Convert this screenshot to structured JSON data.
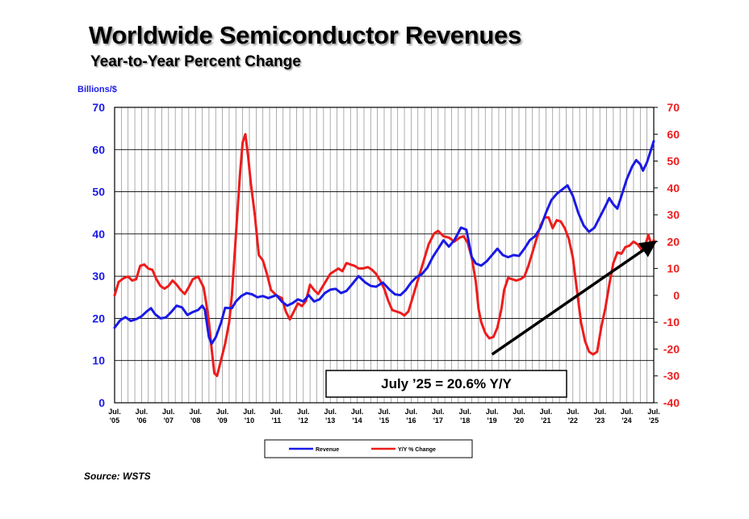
{
  "header": {
    "title": "Worldwide Semiconductor Revenues",
    "subtitle": "Year-to-Year Percent Change"
  },
  "footer": {
    "source": "Source: WSTS"
  },
  "chart_data": {
    "type": "line",
    "title": "Worldwide Semiconductor Revenues",
    "subtitle": "Year-to-Year Percent Change",
    "left_axis": {
      "label": "Billions/$",
      "ylim": [
        0,
        70
      ],
      "ticks": [
        0,
        10,
        20,
        30,
        40,
        50,
        60,
        70
      ],
      "color": "#1a1ae6"
    },
    "right_axis": {
      "label": "",
      "ylim": [
        -40,
        70
      ],
      "ticks": [
        -40,
        -30,
        -20,
        -10,
        0,
        10,
        20,
        30,
        40,
        50,
        60,
        70
      ],
      "color": "#ee1c1c"
    },
    "x_range": [
      2005.5,
      2025.5
    ],
    "x_ticks": [
      {
        "x": 2005.5,
        "line1": "Jul.",
        "line2": "'05"
      },
      {
        "x": 2006.5,
        "line1": "Jul.",
        "line2": "'06"
      },
      {
        "x": 2007.5,
        "line1": "Jul.",
        "line2": "'07"
      },
      {
        "x": 2008.5,
        "line1": "Jul.",
        "line2": "'08"
      },
      {
        "x": 2009.5,
        "line1": "Jul.",
        "line2": "'09"
      },
      {
        "x": 2010.5,
        "line1": "Jul.",
        "line2": "'10"
      },
      {
        "x": 2011.5,
        "line1": "Jul.",
        "line2": "'11"
      },
      {
        "x": 2012.5,
        "line1": "Jul.",
        "line2": "'12"
      },
      {
        "x": 2013.5,
        "line1": "Jul.",
        "line2": "'13"
      },
      {
        "x": 2014.5,
        "line1": "Jul.",
        "line2": "'14"
      },
      {
        "x": 2015.5,
        "line1": "Jul.",
        "line2": "'15"
      },
      {
        "x": 2016.5,
        "line1": "Jul.",
        "line2": "'16"
      },
      {
        "x": 2017.5,
        "line1": "Jul.",
        "line2": "'17"
      },
      {
        "x": 2018.5,
        "line1": "Jul.",
        "line2": "'18"
      },
      {
        "x": 2019.5,
        "line1": "Jul.",
        "line2": "'19"
      },
      {
        "x": 2020.5,
        "line1": "Jul.",
        "line2": "'20"
      },
      {
        "x": 2021.5,
        "line1": "Jul.",
        "line2": "'21"
      },
      {
        "x": 2022.5,
        "line1": "Jul.",
        "line2": "'22"
      },
      {
        "x": 2023.5,
        "line1": "Jul.",
        "line2": "'23"
      },
      {
        "x": 2024.5,
        "line1": "Jul.",
        "line2": "'24"
      },
      {
        "x": 2025.5,
        "line1": "Jul.",
        "line2": "'25"
      }
    ],
    "series": [
      {
        "name": "Revenue",
        "axis": "left",
        "color": "#1a1ae6",
        "points": [
          [
            2005.5,
            17.8
          ],
          [
            2005.7,
            19.5
          ],
          [
            2005.9,
            20.3
          ],
          [
            2006.1,
            19.4
          ],
          [
            2006.3,
            19.8
          ],
          [
            2006.5,
            20.5
          ],
          [
            2006.7,
            21.7
          ],
          [
            2006.85,
            22.4
          ],
          [
            2007.0,
            21.0
          ],
          [
            2007.2,
            20.0
          ],
          [
            2007.4,
            20.2
          ],
          [
            2007.6,
            21.5
          ],
          [
            2007.8,
            23.0
          ],
          [
            2008.0,
            22.6
          ],
          [
            2008.2,
            20.8
          ],
          [
            2008.4,
            21.5
          ],
          [
            2008.6,
            22.0
          ],
          [
            2008.75,
            23.0
          ],
          [
            2008.85,
            22.0
          ],
          [
            2009.0,
            15.5
          ],
          [
            2009.1,
            14.0
          ],
          [
            2009.25,
            15.5
          ],
          [
            2009.45,
            19.0
          ],
          [
            2009.6,
            22.5
          ],
          [
            2009.85,
            22.4
          ],
          [
            2010.0,
            24.0
          ],
          [
            2010.2,
            25.3
          ],
          [
            2010.4,
            26.0
          ],
          [
            2010.6,
            25.7
          ],
          [
            2010.8,
            25.0
          ],
          [
            2011.0,
            25.3
          ],
          [
            2011.2,
            24.8
          ],
          [
            2011.5,
            25.5
          ],
          [
            2011.7,
            24.0
          ],
          [
            2011.9,
            23.0
          ],
          [
            2012.1,
            23.6
          ],
          [
            2012.3,
            24.5
          ],
          [
            2012.5,
            24.0
          ],
          [
            2012.7,
            25.5
          ],
          [
            2012.9,
            24.0
          ],
          [
            2013.1,
            24.5
          ],
          [
            2013.3,
            26.0
          ],
          [
            2013.5,
            26.8
          ],
          [
            2013.7,
            27.0
          ],
          [
            2013.9,
            26.0
          ],
          [
            2014.1,
            26.5
          ],
          [
            2014.3,
            28.0
          ],
          [
            2014.55,
            30.0
          ],
          [
            2014.8,
            28.5
          ],
          [
            2015.0,
            27.7
          ],
          [
            2015.2,
            27.5
          ],
          [
            2015.45,
            28.5
          ],
          [
            2015.7,
            26.8
          ],
          [
            2015.9,
            25.7
          ],
          [
            2016.1,
            25.5
          ],
          [
            2016.3,
            26.7
          ],
          [
            2016.5,
            28.5
          ],
          [
            2016.7,
            29.8
          ],
          [
            2016.9,
            30.5
          ],
          [
            2017.1,
            32.0
          ],
          [
            2017.3,
            34.5
          ],
          [
            2017.5,
            36.5
          ],
          [
            2017.7,
            38.5
          ],
          [
            2017.9,
            37.0
          ],
          [
            2018.1,
            38.5
          ],
          [
            2018.35,
            41.5
          ],
          [
            2018.55,
            41.0
          ],
          [
            2018.75,
            34.5
          ],
          [
            2018.9,
            33.0
          ],
          [
            2019.1,
            32.5
          ],
          [
            2019.3,
            33.5
          ],
          [
            2019.5,
            35.0
          ],
          [
            2019.7,
            36.5
          ],
          [
            2019.9,
            35.0
          ],
          [
            2020.1,
            34.5
          ],
          [
            2020.3,
            35.0
          ],
          [
            2020.5,
            34.8
          ],
          [
            2020.7,
            36.5
          ],
          [
            2020.9,
            38.5
          ],
          [
            2021.1,
            39.5
          ],
          [
            2021.3,
            41.5
          ],
          [
            2021.5,
            45.0
          ],
          [
            2021.7,
            48.0
          ],
          [
            2021.9,
            49.5
          ],
          [
            2022.1,
            50.5
          ],
          [
            2022.3,
            51.5
          ],
          [
            2022.5,
            49.0
          ],
          [
            2022.7,
            45.0
          ],
          [
            2022.9,
            42.0
          ],
          [
            2023.1,
            40.5
          ],
          [
            2023.3,
            41.5
          ],
          [
            2023.5,
            44.0
          ],
          [
            2023.7,
            46.5
          ],
          [
            2023.85,
            48.5
          ],
          [
            2024.0,
            47.0
          ],
          [
            2024.15,
            46.0
          ],
          [
            2024.3,
            49.0
          ],
          [
            2024.5,
            53.0
          ],
          [
            2024.7,
            56.0
          ],
          [
            2024.85,
            57.5
          ],
          [
            2025.0,
            56.5
          ],
          [
            2025.1,
            55.0
          ],
          [
            2025.25,
            57.0
          ],
          [
            2025.4,
            60.0
          ],
          [
            2025.5,
            62.0
          ]
        ]
      },
      {
        "name": "Y/Y % Change",
        "axis": "right",
        "color": "#ee1c1c",
        "points": [
          [
            2005.5,
            0.0
          ],
          [
            2005.65,
            5.0
          ],
          [
            2005.85,
            6.5
          ],
          [
            2006.0,
            7.0
          ],
          [
            2006.15,
            5.5
          ],
          [
            2006.3,
            6.0
          ],
          [
            2006.45,
            11.0
          ],
          [
            2006.6,
            11.5
          ],
          [
            2006.75,
            10.0
          ],
          [
            2006.9,
            9.5
          ],
          [
            2007.05,
            6.0
          ],
          [
            2007.2,
            3.5
          ],
          [
            2007.35,
            2.5
          ],
          [
            2007.5,
            3.5
          ],
          [
            2007.65,
            5.5
          ],
          [
            2007.8,
            4.0
          ],
          [
            2007.95,
            2.0
          ],
          [
            2008.1,
            0.5
          ],
          [
            2008.25,
            3.0
          ],
          [
            2008.4,
            6.0
          ],
          [
            2008.6,
            7.0
          ],
          [
            2008.8,
            3.0
          ],
          [
            2008.9,
            -3.0
          ],
          [
            2009.0,
            -10.0
          ],
          [
            2009.1,
            -20.0
          ],
          [
            2009.2,
            -29.0
          ],
          [
            2009.3,
            -30.0
          ],
          [
            2009.45,
            -24.0
          ],
          [
            2009.6,
            -18.0
          ],
          [
            2009.75,
            -10.0
          ],
          [
            2009.85,
            0.0
          ],
          [
            2009.95,
            15.0
          ],
          [
            2010.05,
            30.0
          ],
          [
            2010.15,
            45.0
          ],
          [
            2010.25,
            57.0
          ],
          [
            2010.35,
            60.0
          ],
          [
            2010.45,
            52.0
          ],
          [
            2010.55,
            42.0
          ],
          [
            2010.7,
            30.0
          ],
          [
            2010.85,
            15.0
          ],
          [
            2011.0,
            13.0
          ],
          [
            2011.15,
            8.0
          ],
          [
            2011.3,
            2.0
          ],
          [
            2011.5,
            0.0
          ],
          [
            2011.7,
            -1.0
          ],
          [
            2011.85,
            -6.0
          ],
          [
            2012.0,
            -9.0
          ],
          [
            2012.15,
            -6.0
          ],
          [
            2012.3,
            -3.0
          ],
          [
            2012.45,
            -4.0
          ],
          [
            2012.6,
            -2.0
          ],
          [
            2012.75,
            4.0
          ],
          [
            2012.9,
            2.0
          ],
          [
            2013.05,
            0.5
          ],
          [
            2013.2,
            3.0
          ],
          [
            2013.35,
            5.5
          ],
          [
            2013.5,
            8.0
          ],
          [
            2013.65,
            9.0
          ],
          [
            2013.8,
            10.0
          ],
          [
            2013.95,
            9.0
          ],
          [
            2014.1,
            12.0
          ],
          [
            2014.25,
            11.5
          ],
          [
            2014.4,
            11.0
          ],
          [
            2014.55,
            10.0
          ],
          [
            2014.7,
            10.0
          ],
          [
            2014.9,
            10.5
          ],
          [
            2015.05,
            9.5
          ],
          [
            2015.2,
            8.0
          ],
          [
            2015.35,
            5.5
          ],
          [
            2015.5,
            2.5
          ],
          [
            2015.65,
            -2.0
          ],
          [
            2015.8,
            -5.5
          ],
          [
            2015.95,
            -6.0
          ],
          [
            2016.1,
            -6.5
          ],
          [
            2016.25,
            -7.5
          ],
          [
            2016.4,
            -6.0
          ],
          [
            2016.55,
            -1.0
          ],
          [
            2016.7,
            4.0
          ],
          [
            2016.85,
            9.0
          ],
          [
            2017.0,
            14.0
          ],
          [
            2017.15,
            19.0
          ],
          [
            2017.35,
            23.0
          ],
          [
            2017.5,
            24.0
          ],
          [
            2017.7,
            22.0
          ],
          [
            2017.9,
            21.5
          ],
          [
            2018.1,
            20.0
          ],
          [
            2018.3,
            21.5
          ],
          [
            2018.45,
            22.0
          ],
          [
            2018.6,
            19.5
          ],
          [
            2018.75,
            14.0
          ],
          [
            2018.9,
            5.0
          ],
          [
            2019.0,
            -5.0
          ],
          [
            2019.1,
            -10.0
          ],
          [
            2019.25,
            -14.0
          ],
          [
            2019.4,
            -16.0
          ],
          [
            2019.55,
            -15.5
          ],
          [
            2019.7,
            -12.0
          ],
          [
            2019.85,
            -5.0
          ],
          [
            2019.95,
            2.0
          ],
          [
            2020.1,
            6.5
          ],
          [
            2020.25,
            6.0
          ],
          [
            2020.4,
            5.5
          ],
          [
            2020.55,
            6.0
          ],
          [
            2020.7,
            7.0
          ],
          [
            2020.85,
            11.0
          ],
          [
            2021.0,
            16.0
          ],
          [
            2021.15,
            21.0
          ],
          [
            2021.3,
            26.0
          ],
          [
            2021.45,
            29.0
          ],
          [
            2021.6,
            29.0
          ],
          [
            2021.75,
            25.0
          ],
          [
            2021.9,
            28.0
          ],
          [
            2022.05,
            27.5
          ],
          [
            2022.2,
            25.0
          ],
          [
            2022.35,
            21.0
          ],
          [
            2022.5,
            14.0
          ],
          [
            2022.65,
            2.0
          ],
          [
            2022.8,
            -10.0
          ],
          [
            2022.95,
            -17.0
          ],
          [
            2023.1,
            -21.0
          ],
          [
            2023.25,
            -22.0
          ],
          [
            2023.4,
            -21.0
          ],
          [
            2023.55,
            -12.0
          ],
          [
            2023.7,
            -5.0
          ],
          [
            2023.85,
            4.0
          ],
          [
            2024.0,
            12.0
          ],
          [
            2024.15,
            16.0
          ],
          [
            2024.3,
            15.5
          ],
          [
            2024.45,
            18.0
          ],
          [
            2024.6,
            18.5
          ],
          [
            2024.75,
            20.0
          ],
          [
            2024.9,
            19.0
          ],
          [
            2025.05,
            17.0
          ],
          [
            2025.15,
            17.5
          ],
          [
            2025.3,
            22.5
          ],
          [
            2025.42,
            18.5
          ],
          [
            2025.5,
            20.6
          ]
        ]
      }
    ],
    "annotations": {
      "callout_text": "July ’25 = 20.6% Y/Y",
      "trend_arrow": {
        "from": [
          2019.5,
          -22
        ],
        "to": [
          2025.45,
          19.2
        ]
      }
    },
    "legend": {
      "position": "bottom-center",
      "entries": [
        "Revenue",
        "Y/Y % Change"
      ]
    }
  }
}
